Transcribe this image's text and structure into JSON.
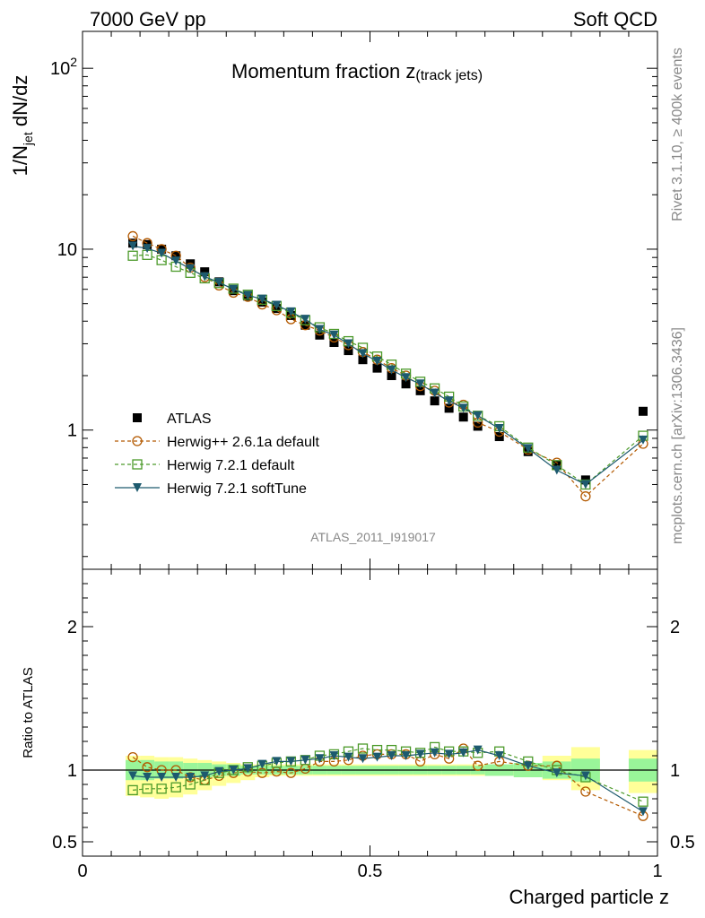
{
  "header": {
    "left": "7000 GeV pp",
    "right": "Soft QCD"
  },
  "side": {
    "rivet": "Rivet 3.1.10, ≥ 400k events",
    "mcplots": "mcplots.cern.ch [arXiv:1306.3436]"
  },
  "colors": {
    "atlas": "#000000",
    "herwigpp": "#b35900",
    "herwig721": "#4c9a2a",
    "softtune": "#1d5a6e",
    "band_inner": "#99f599",
    "band_outer": "#ffff99"
  },
  "chart_data": [
    {
      "type": "scatter",
      "title": "Momentum fraction z",
      "title_suffix": "(track jets)",
      "analysis_id": "ATLAS_2011_I919017",
      "ylabel_main": "1/N",
      "ylabel_sub": "jet",
      "ylabel_tail": " dN/dz",
      "xlabel": "Charged particle z",
      "yscale": "log",
      "xlim": [
        0,
        1
      ],
      "ylim": [
        0.17,
        160
      ],
      "yticks": [
        {
          "v": 1,
          "label": "1"
        },
        {
          "v": 10,
          "label": "10"
        }
      ],
      "ytick_power": {
        "v": 100,
        "base": "10",
        "exp": "2"
      },
      "legend": [
        {
          "key": "atlas",
          "label": "ATLAS"
        },
        {
          "key": "herwigpp",
          "label": "Herwig++ 2.6.1a default"
        },
        {
          "key": "herwig721",
          "label": "Herwig 7.2.1 default"
        },
        {
          "key": "softtune",
          "label": "Herwig 7.2.1 softTune"
        }
      ],
      "x": [
        0.0875,
        0.1125,
        0.1375,
        0.1625,
        0.1875,
        0.2125,
        0.2375,
        0.2625,
        0.2875,
        0.3125,
        0.3375,
        0.3625,
        0.3875,
        0.4125,
        0.4375,
        0.4625,
        0.4875,
        0.5125,
        0.5375,
        0.5625,
        0.5875,
        0.6125,
        0.6375,
        0.6625,
        0.6875,
        0.725,
        0.775,
        0.825,
        0.875,
        0.975
      ],
      "series": [
        {
          "name": "ATLAS",
          "key": "atlas",
          "marker": "square",
          "values": [
            10.8,
            10.6,
            10.0,
            9.2,
            8.3,
            7.5,
            6.6,
            5.9,
            5.5,
            5.1,
            4.7,
            4.3,
            3.8,
            3.35,
            3.05,
            2.75,
            2.45,
            2.2,
            2.0,
            1.8,
            1.65,
            1.45,
            1.32,
            1.18,
            1.05,
            0.92,
            0.76,
            0.64,
            0.53,
            1.27
          ]
        },
        {
          "name": "Herwig++ 2.6.1a default",
          "key": "herwigpp",
          "marker": "circle",
          "line": "dashed",
          "values": [
            11.8,
            10.8,
            10.0,
            9.2,
            7.9,
            7.0,
            6.3,
            5.75,
            5.45,
            4.95,
            4.6,
            4.1,
            3.8,
            3.55,
            3.25,
            2.95,
            2.7,
            2.45,
            2.2,
            2.0,
            1.75,
            1.65,
            1.42,
            1.38,
            1.1,
            0.98,
            0.78,
            0.66,
            0.43,
            0.84
          ]
        },
        {
          "name": "Herwig 7.2.1 default",
          "key": "herwig721",
          "marker": "opensquare",
          "line": "dashed",
          "values": [
            9.2,
            9.3,
            8.7,
            8.0,
            7.4,
            6.9,
            6.5,
            6.05,
            5.6,
            5.25,
            4.85,
            4.45,
            4.05,
            3.7,
            3.4,
            3.1,
            2.85,
            2.55,
            2.3,
            2.05,
            1.85,
            1.7,
            1.53,
            1.35,
            1.2,
            1.05,
            0.8,
            0.64,
            0.5,
            0.93
          ]
        },
        {
          "name": "Herwig 7.2.1 softTune",
          "key": "softtune",
          "marker": "triangle",
          "line": "solid",
          "values": [
            10.4,
            10.1,
            9.5,
            8.6,
            7.8,
            7.05,
            6.55,
            6.0,
            5.55,
            5.3,
            4.9,
            4.5,
            4.1,
            3.6,
            3.35,
            3.0,
            2.65,
            2.4,
            2.15,
            1.95,
            1.8,
            1.6,
            1.45,
            1.32,
            1.2,
            1.02,
            0.79,
            0.6,
            0.5,
            0.88
          ]
        }
      ]
    },
    {
      "type": "scatter",
      "ylabel": "Ratio to ATLAS",
      "xlabel": "Charged particle z",
      "xlim": [
        0,
        1
      ],
      "ylim": [
        0.4,
        2.4
      ],
      "xticks": [
        {
          "v": 0,
          "label": "0"
        },
        {
          "v": 0.5,
          "label": "0.5"
        },
        {
          "v": 1,
          "label": "1"
        }
      ],
      "yticks": [
        {
          "v": 0.5,
          "label": "0.5"
        },
        {
          "v": 1,
          "label": "1"
        },
        {
          "v": 2,
          "label": "2"
        }
      ],
      "bands": {
        "edges": [
          0.075,
          0.1,
          0.125,
          0.15,
          0.175,
          0.2,
          0.225,
          0.25,
          0.275,
          0.3,
          0.325,
          0.35,
          0.375,
          0.4,
          0.425,
          0.45,
          0.475,
          0.5,
          0.525,
          0.55,
          0.575,
          0.6,
          0.625,
          0.65,
          0.675,
          0.7,
          0.75,
          0.8,
          0.85,
          0.9,
          0.95,
          1.0
        ],
        "inner": [
          [
            0.93,
            1.07
          ],
          [
            0.93,
            1.07
          ],
          [
            0.94,
            1.06
          ],
          [
            0.94,
            1.06
          ],
          [
            0.95,
            1.05
          ],
          [
            0.95,
            1.05
          ],
          [
            0.96,
            1.04
          ],
          [
            0.96,
            1.04
          ],
          [
            0.97,
            1.03
          ],
          [
            0.97,
            1.03
          ],
          [
            0.97,
            1.03
          ],
          [
            0.97,
            1.03
          ],
          [
            0.97,
            1.03
          ],
          [
            0.97,
            1.03
          ],
          [
            0.97,
            1.03
          ],
          [
            0.97,
            1.03
          ],
          [
            0.97,
            1.03
          ],
          [
            0.97,
            1.03
          ],
          [
            0.97,
            1.03
          ],
          [
            0.97,
            1.03
          ],
          [
            0.97,
            1.03
          ],
          [
            0.97,
            1.03
          ],
          [
            0.97,
            1.03
          ],
          [
            0.97,
            1.03
          ],
          [
            0.97,
            1.03
          ],
          [
            0.96,
            1.04
          ],
          [
            0.95,
            1.05
          ],
          [
            0.94,
            1.06
          ],
          [
            0.92,
            1.08
          ],
          null,
          [
            0.92,
            1.08
          ]
        ],
        "outer": [
          [
            0.82,
            1.1
          ],
          [
            0.81,
            1.1
          ],
          [
            0.8,
            1.09
          ],
          [
            0.81,
            1.09
          ],
          [
            0.83,
            1.08
          ],
          [
            0.86,
            1.07
          ],
          [
            0.89,
            1.06
          ],
          [
            0.91,
            1.05
          ],
          [
            0.93,
            1.04
          ],
          [
            0.95,
            1.04
          ],
          [
            0.96,
            1.04
          ],
          [
            0.96,
            1.04
          ],
          [
            0.96,
            1.04
          ],
          [
            0.96,
            1.04
          ],
          [
            0.96,
            1.04
          ],
          [
            0.96,
            1.04
          ],
          [
            0.96,
            1.04
          ],
          [
            0.96,
            1.04
          ],
          [
            0.96,
            1.04
          ],
          [
            0.96,
            1.04
          ],
          [
            0.96,
            1.04
          ],
          [
            0.96,
            1.04
          ],
          [
            0.96,
            1.04
          ],
          [
            0.96,
            1.04
          ],
          [
            0.96,
            1.04
          ],
          [
            0.96,
            1.04
          ],
          [
            0.96,
            1.04
          ],
          [
            0.93,
            1.1
          ],
          [
            0.86,
            1.16
          ],
          null,
          [
            0.84,
            1.14
          ]
        ]
      },
      "x": [
        0.0875,
        0.1125,
        0.1375,
        0.1625,
        0.1875,
        0.2125,
        0.2375,
        0.2625,
        0.2875,
        0.3125,
        0.3375,
        0.3625,
        0.3875,
        0.4125,
        0.4375,
        0.4625,
        0.4875,
        0.5125,
        0.5375,
        0.5625,
        0.5875,
        0.6125,
        0.6375,
        0.6625,
        0.6875,
        0.725,
        0.775,
        0.825,
        0.875,
        0.975
      ],
      "series": [
        {
          "name": "Herwig++ 2.6.1a default",
          "key": "herwigpp",
          "marker": "circle",
          "line": "dashed",
          "values": [
            1.09,
            1.02,
            1.0,
            1.0,
            0.95,
            0.93,
            0.96,
            0.98,
            0.99,
            0.98,
            0.99,
            0.98,
            1.01,
            1.06,
            1.06,
            1.07,
            1.1,
            1.11,
            1.11,
            1.11,
            1.06,
            1.11,
            1.08,
            1.15,
            1.03,
            1.06,
            1.03,
            1.03,
            0.85,
            0.68
          ]
        },
        {
          "name": "Herwig 7.2.1 default",
          "key": "herwig721",
          "marker": "opensquare",
          "line": "dashed",
          "values": [
            0.86,
            0.87,
            0.87,
            0.88,
            0.9,
            0.93,
            0.98,
            1.0,
            1.02,
            1.03,
            1.05,
            1.06,
            1.07,
            1.1,
            1.11,
            1.13,
            1.15,
            1.14,
            1.14,
            1.13,
            1.12,
            1.16,
            1.13,
            1.13,
            1.12,
            1.13,
            1.06,
            1.0,
            0.95,
            0.78
          ]
        },
        {
          "name": "Herwig 7.2.1 softTune",
          "key": "softtune",
          "marker": "triangle",
          "line": "solid",
          "values": [
            0.96,
            0.95,
            0.95,
            0.95,
            0.95,
            0.96,
            0.99,
            1.0,
            1.01,
            1.04,
            1.06,
            1.06,
            1.07,
            1.08,
            1.1,
            1.09,
            1.08,
            1.09,
            1.1,
            1.1,
            1.11,
            1.12,
            1.11,
            1.12,
            1.14,
            1.1,
            1.03,
            0.98,
            0.96,
            0.71
          ]
        }
      ]
    }
  ]
}
